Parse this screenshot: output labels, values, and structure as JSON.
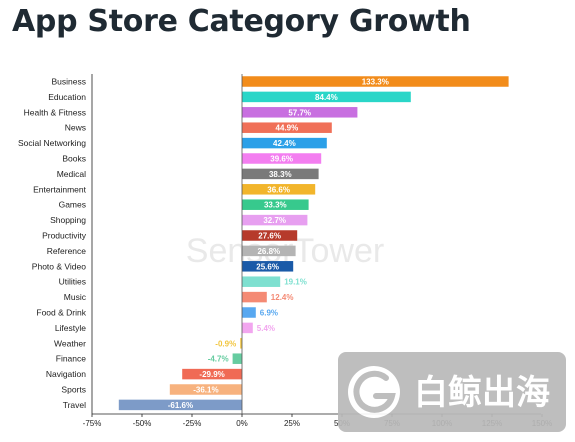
{
  "title": "App Store Category Growth",
  "watermark": "SensorTower",
  "logo_text": "白鲸出海",
  "colors": {
    "zero_line": "#555555",
    "axis_line": "#222222",
    "watermark": "#e9e9e9",
    "logo_bg": "#b9b9b9"
  },
  "chart_data": {
    "type": "bar",
    "orientation": "horizontal",
    "title": "App Store Category Growth",
    "xlim": [
      -75,
      150
    ],
    "x_ticks": [
      "-75%",
      "-50%",
      "-25%",
      "0%",
      "25%",
      "50%",
      "75%",
      "100%",
      "125%",
      "150%"
    ],
    "grid": false,
    "categories": [
      "Business",
      "Education",
      "Health & Fitness",
      "News",
      "Social Networking",
      "Books",
      "Medical",
      "Entertainment",
      "Games",
      "Shopping",
      "Productivity",
      "Reference",
      "Photo & Video",
      "Utilities",
      "Music",
      "Food & Drink",
      "Lifestyle",
      "Weather",
      "Finance",
      "Navigation",
      "Sports",
      "Travel"
    ],
    "values": [
      133.3,
      84.4,
      57.7,
      44.9,
      42.4,
      39.6,
      38.3,
      36.6,
      33.3,
      32.7,
      27.6,
      26.8,
      25.6,
      19.1,
      12.4,
      6.9,
      5.4,
      -0.9,
      -4.7,
      -29.9,
      -36.1,
      -61.6
    ],
    "data_labels": [
      "133.3%",
      "84.4%",
      "57.7%",
      "44.9%",
      "42.4%",
      "39.6%",
      "38.3%",
      "36.6%",
      "33.3%",
      "32.7%",
      "27.6%",
      "26.8%",
      "25.6%",
      "19.1%",
      "12.4%",
      "6.9%",
      "5.4%",
      "-0.9%",
      "-4.7%",
      "-29.9%",
      "-36.1%",
      "-61.6%"
    ],
    "colors": [
      "#f28c1b",
      "#2ad6c8",
      "#c86fe0",
      "#f07058",
      "#2ba0e8",
      "#f37ef0",
      "#7a7a7a",
      "#f2b52b",
      "#37c98d",
      "#e79ff0",
      "#b63a2b",
      "#b4b4b4",
      "#1a5aa8",
      "#7ee0d0",
      "#f48a74",
      "#58a8f0",
      "#f2a6ef",
      "#f2c640",
      "#66cca0",
      "#f06a55",
      "#f7b27e",
      "#7d9bc8"
    ]
  }
}
